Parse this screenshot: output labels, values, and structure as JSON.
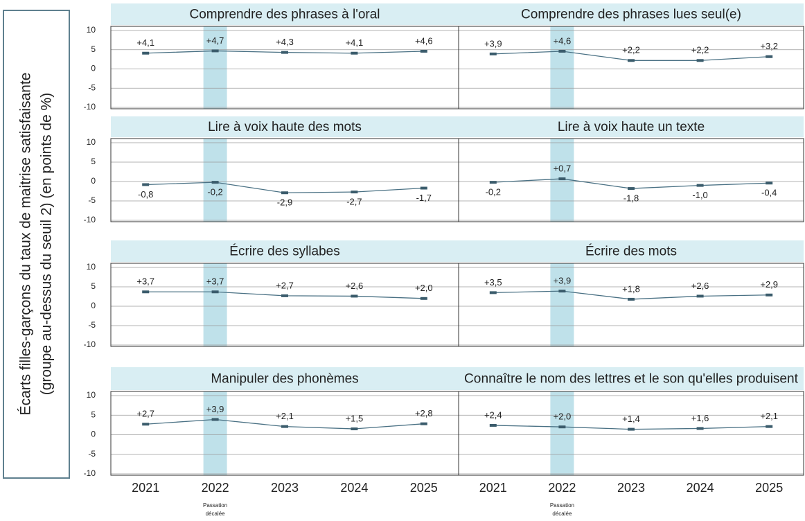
{
  "y_axis_label": [
    "Écarts filles-garçons du taux de maitrise satisfaisante",
    "(groupe au-dessus du seuil 2) (en points de %)"
  ],
  "chart_data": [
    {
      "type": "line",
      "title": "Comprendre des phrases à l'oral",
      "categories": [
        "2021",
        "2022",
        "2023",
        "2024",
        "2025"
      ],
      "values": [
        4.1,
        4.7,
        4.3,
        4.1,
        4.6
      ],
      "value_labels": [
        "+4,1",
        "+4,7",
        "+4,3",
        "+4,1",
        "+4,6"
      ],
      "color": "#4a7184",
      "highlight": "2022",
      "ylim": [
        -10,
        10
      ],
      "yticks": [
        10,
        5,
        0,
        -5,
        -10
      ],
      "grid": true
    },
    {
      "type": "line",
      "title": "Comprendre des phrases lues seul(e)",
      "categories": [
        "2021",
        "2022",
        "2023",
        "2024",
        "2025"
      ],
      "values": [
        3.9,
        4.6,
        2.2,
        2.2,
        3.2
      ],
      "value_labels": [
        "+3,9",
        "+4,6",
        "+2,2",
        "+2,2",
        "+3,2"
      ],
      "color": "#4a7184",
      "highlight": "2022",
      "ylim": [
        -10,
        10
      ],
      "yticks": [
        10,
        5,
        0,
        -5,
        -10
      ],
      "grid": true
    },
    {
      "type": "line",
      "title": "Lire à voix haute des mots",
      "categories": [
        "2021",
        "2022",
        "2023",
        "2024",
        "2025"
      ],
      "values": [
        -0.8,
        -0.2,
        -2.9,
        -2.7,
        -1.7
      ],
      "value_labels": [
        "-0,8",
        "-0,2",
        "-2,9",
        "-2,7",
        "-1,7"
      ],
      "color": "#4a7184",
      "highlight": "2022",
      "ylim": [
        -10,
        10
      ],
      "yticks": [
        10,
        5,
        0,
        -5,
        -10
      ],
      "grid": true
    },
    {
      "type": "line",
      "title": "Lire à voix haute un texte",
      "categories": [
        "2021",
        "2022",
        "2023",
        "2024",
        "2025"
      ],
      "values": [
        -0.2,
        0.7,
        -1.8,
        -1.0,
        -0.4
      ],
      "value_labels": [
        "-0,2",
        "+0,7",
        "-1,8",
        "-1,0",
        "-0,4"
      ],
      "color": "#4a7184",
      "highlight": "2022",
      "ylim": [
        -10,
        10
      ],
      "yticks": [
        10,
        5,
        0,
        -5,
        -10
      ],
      "grid": true
    },
    {
      "type": "line",
      "title": "Écrire des syllabes",
      "categories": [
        "2021",
        "2022",
        "2023",
        "2024",
        "2025"
      ],
      "values": [
        3.7,
        3.7,
        2.7,
        2.6,
        2.0
      ],
      "value_labels": [
        "+3,7",
        "+3,7",
        "+2,7",
        "+2,6",
        "+2,0"
      ],
      "color": "#4a7184",
      "highlight": "2022",
      "ylim": [
        -10,
        10
      ],
      "yticks": [
        10,
        5,
        0,
        -5,
        -10
      ],
      "grid": true
    },
    {
      "type": "line",
      "title": "Écrire des mots",
      "categories": [
        "2021",
        "2022",
        "2023",
        "2024",
        "2025"
      ],
      "values": [
        3.5,
        3.9,
        1.8,
        2.6,
        2.9
      ],
      "value_labels": [
        "+3,5",
        "+3,9",
        "+1,8",
        "+2,6",
        "+2,9"
      ],
      "color": "#4a7184",
      "highlight": "2022",
      "ylim": [
        -10,
        10
      ],
      "yticks": [
        10,
        5,
        0,
        -5,
        -10
      ],
      "grid": true
    },
    {
      "type": "line",
      "title": "Manipuler des phonèmes",
      "categories": [
        "2021",
        "2022",
        "2023",
        "2024",
        "2025"
      ],
      "values": [
        2.7,
        3.9,
        2.1,
        1.5,
        2.8
      ],
      "value_labels": [
        "+2,7",
        "+3,9",
        "+2,1",
        "+1,5",
        "+2,8"
      ],
      "color": "#4a7184",
      "highlight": "2022",
      "annotation": [
        "Passation",
        "décalée"
      ],
      "ylim": [
        -10,
        10
      ],
      "yticks": [
        10,
        5,
        0,
        -5,
        -10
      ],
      "grid": true
    },
    {
      "type": "line",
      "title": "Connaître le nom des lettres et le son qu'elles produisent",
      "categories": [
        "2021",
        "2022",
        "2023",
        "2024",
        "2025"
      ],
      "values": [
        2.4,
        2.0,
        1.4,
        1.6,
        2.1
      ],
      "value_labels": [
        "+2,4",
        "+2,0",
        "+1,4",
        "+1,6",
        "+2,1"
      ],
      "color": "#4a7184",
      "highlight": "2022",
      "annotation": [
        "Passation",
        "décalée"
      ],
      "ylim": [
        -10,
        10
      ],
      "yticks": [
        10,
        5,
        0,
        -5,
        -10
      ],
      "grid": true
    }
  ]
}
